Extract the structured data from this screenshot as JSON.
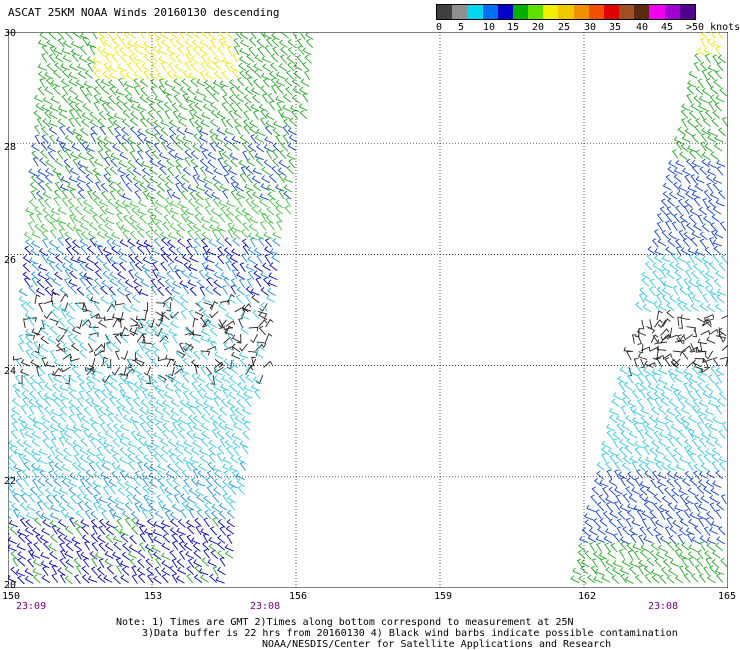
{
  "title": "ASCAT 25KM NOAA Winds 20160130 descending",
  "legend": {
    "labels": [
      "0",
      "5",
      "10",
      "15",
      "20",
      "25",
      "30",
      "35",
      "40",
      "45",
      ">50 knots"
    ],
    "colors": [
      "#404040",
      "#909090",
      "#00d8f0",
      "#0070f0",
      "#0000c8",
      "#00b000",
      "#60e000",
      "#f0f000",
      "#f0c800",
      "#f09000",
      "#f05000",
      "#e00000",
      "#a05020",
      "#5a2a10",
      "#f000f0",
      "#a000d0",
      "#50008c"
    ]
  },
  "axes": {
    "lat_labels": [
      "30",
      "28",
      "26",
      "24",
      "22",
      "20"
    ],
    "lon_labels": [
      "150",
      "153",
      "156",
      "159",
      "162",
      "165"
    ]
  },
  "times": [
    "23:09",
    "23:08",
    "23:08"
  ],
  "notes": {
    "line1": "Note: 1) Times are GMT 2)Times along bottom correspond to measurement at 25N",
    "line2": "3)Data buffer is 22 hrs from 20160130 4) Black wind barbs indicate possible contamination",
    "line3": "NOAA/NESDIS/Center for Satellite Applications and Research"
  }
}
